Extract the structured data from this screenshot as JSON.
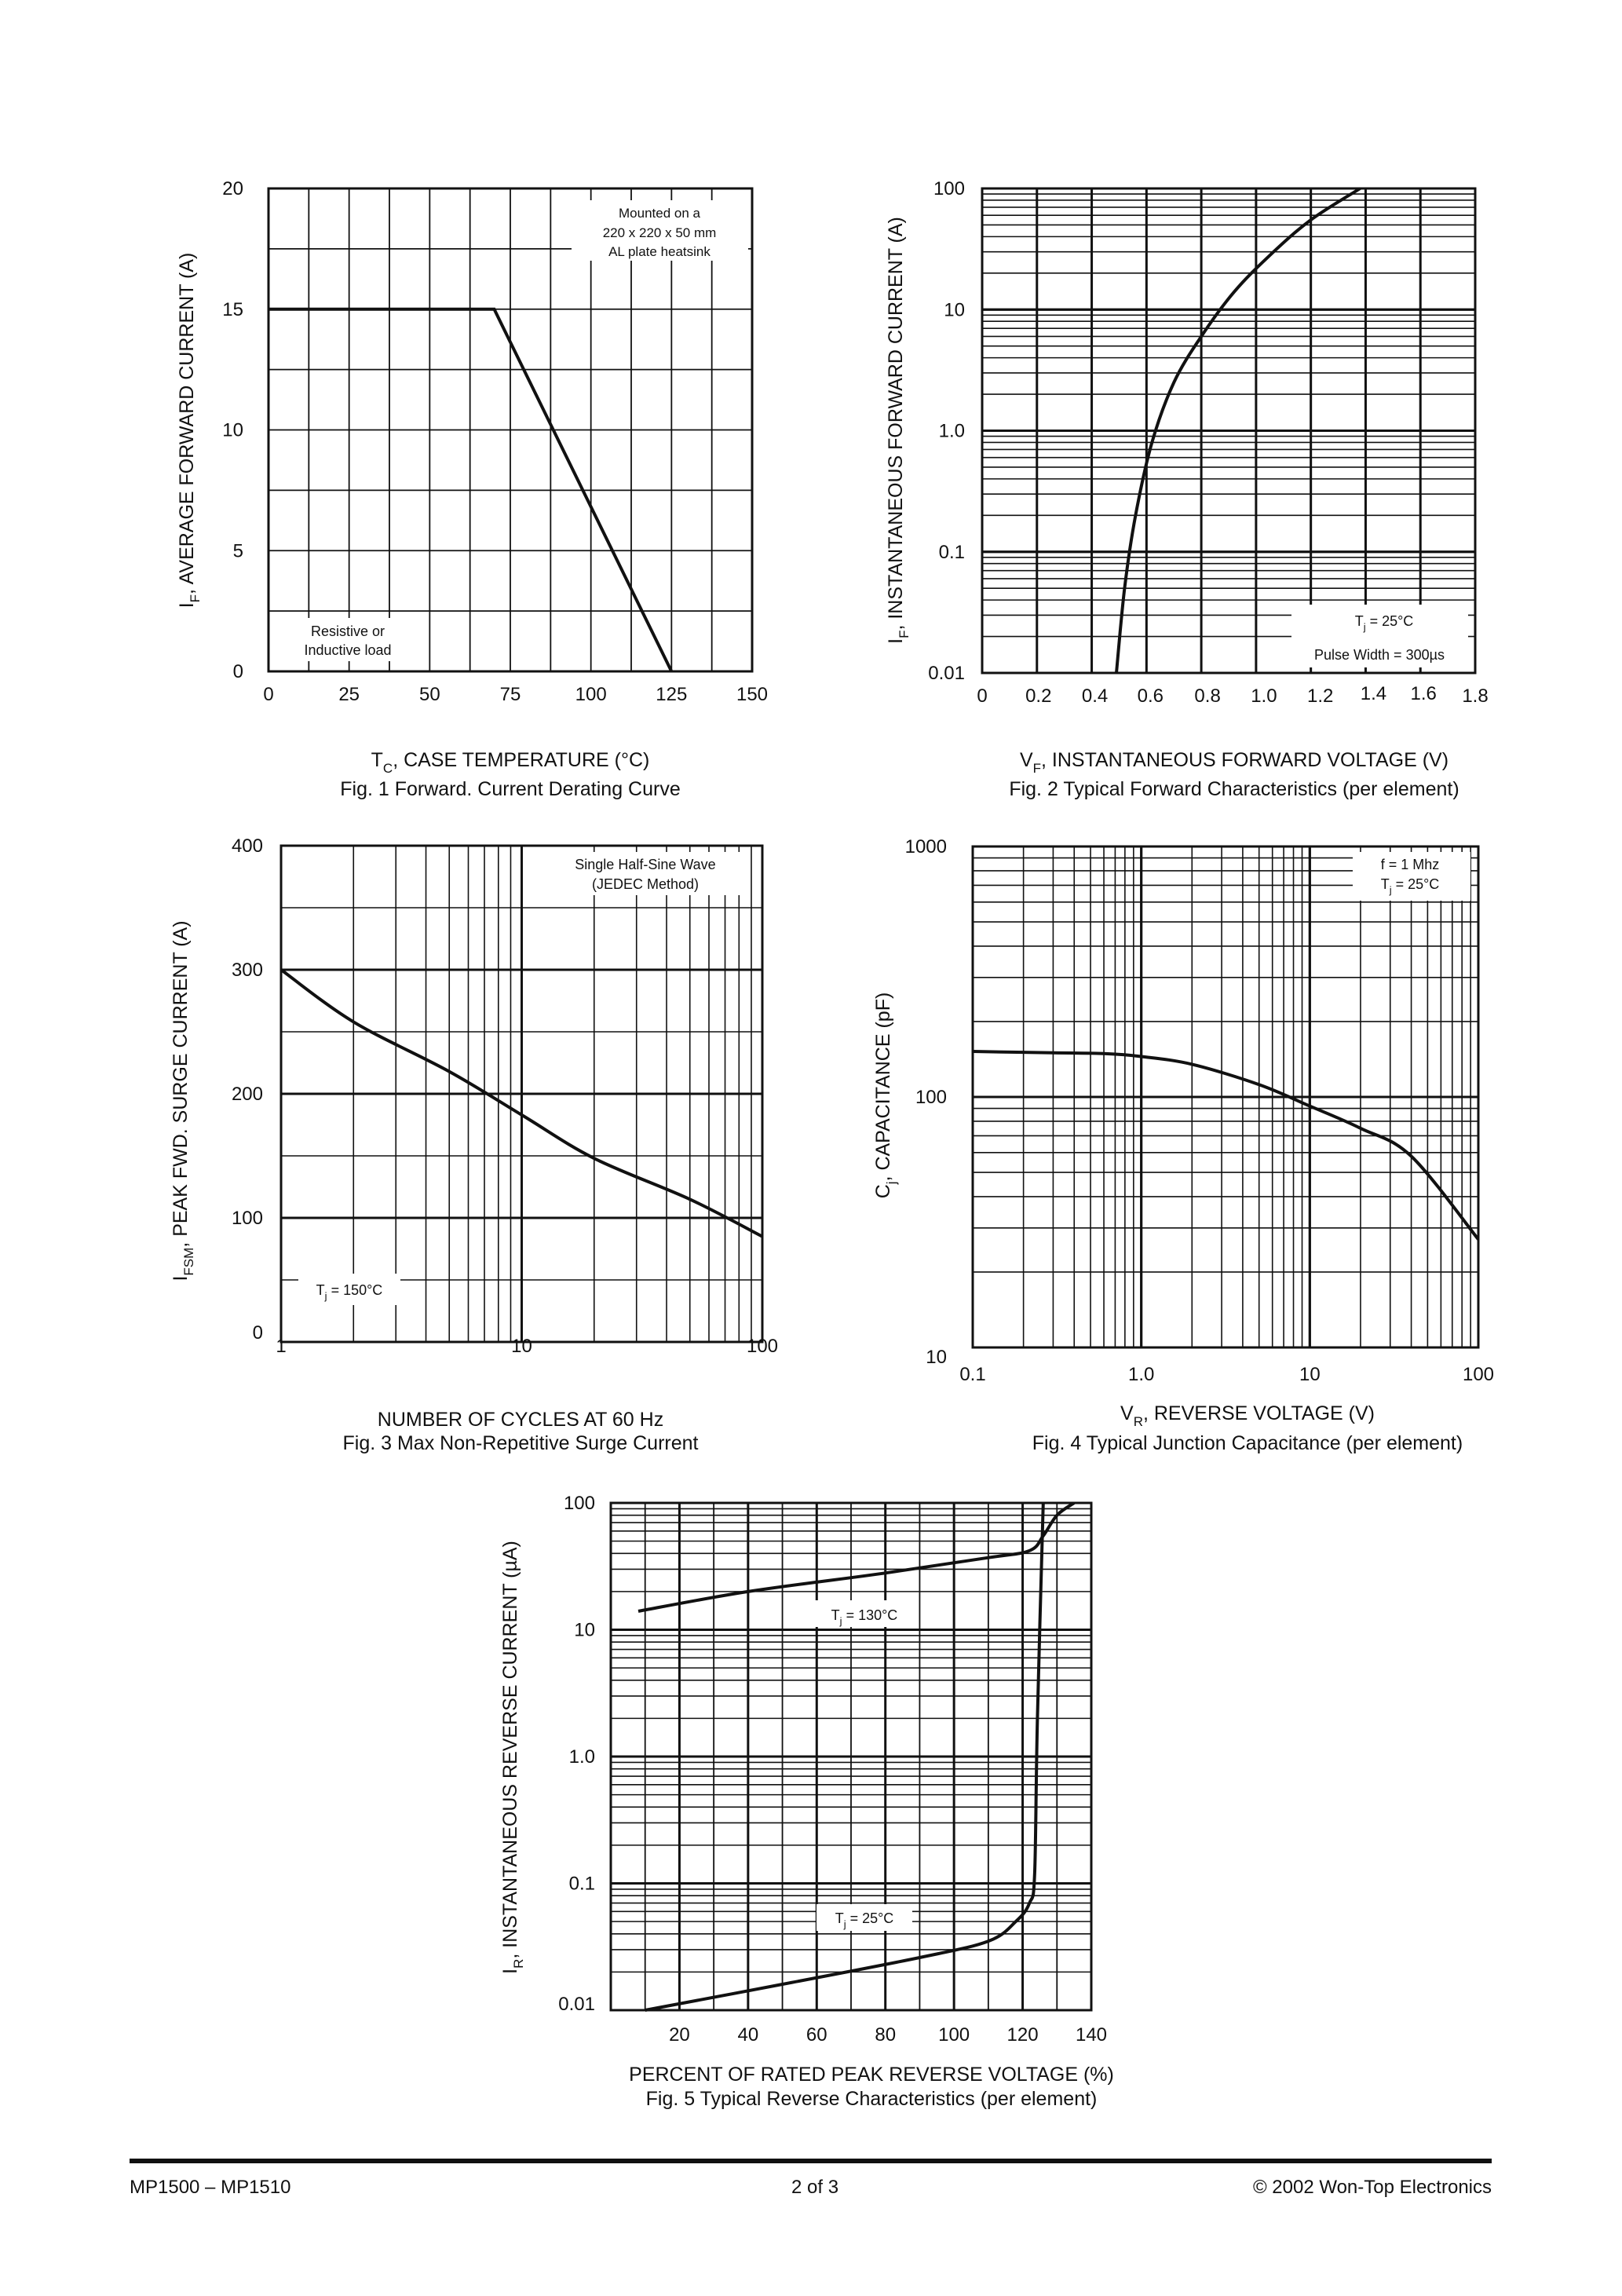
{
  "charts": {
    "fig1": {
      "ylabel_main": "I",
      "ylabel_sub": "F",
      "ylabel_rest": ", AVERAGE FORWARD CURRENT (A)",
      "xlabel_main": "T",
      "xlabel_sub": "C",
      "xlabel_rest": ", CASE TEMPERATURE (°C)",
      "caption": "Fig. 1  Forward. Current Derating Curve",
      "note_top": [
        "Mounted on a",
        "220 x 220 x 50 mm",
        "AL plate heatsink"
      ],
      "note_bottom": [
        "Resistive or",
        "Inductive load"
      ]
    },
    "fig2": {
      "ylabel_main": "I",
      "ylabel_sub": "F",
      "ylabel_rest": ", INSTANTANEOUS FORWARD CURRENT (A)",
      "xlabel_main": "V",
      "xlabel_sub": "F",
      "xlabel_rest": ", INSTANTANEOUS FORWARD VOLTAGE (V)",
      "caption": "Fig. 2  Typical Forward Characteristics (per element)",
      "note1_main": "T",
      "note1_sub": "j",
      "note1_rest": " = 25°C",
      "note2": "Pulse Width = 300µs"
    },
    "fig3": {
      "ylabel_main": "I",
      "ylabel_sub": "FSM",
      "ylabel_rest": ", PEAK FWD. SURGE CURRENT (A)",
      "xlabel": "NUMBER OF CYCLES AT 60 Hz",
      "caption": "Fig. 3  Max Non-Repetitive Surge Current",
      "note_top": [
        "Single Half-Sine Wave",
        "(JEDEC Method)"
      ],
      "note_main": "T",
      "note_sub": "j",
      "note_rest": " = 150°C"
    },
    "fig4": {
      "ylabel_main": "C",
      "ylabel_sub": "j",
      "ylabel_rest": ", CAPACITANCE (pF)",
      "xlabel_main": "V",
      "xlabel_sub": "R",
      "xlabel_rest": ", REVERSE VOLTAGE (V)",
      "caption": "Fig. 4  Typical Junction Capacitance (per element)",
      "note1": "f = 1 Mhz",
      "note2_main": "T",
      "note2_sub": "j",
      "note2_rest": " = 25°C"
    },
    "fig5": {
      "ylabel_main": "I",
      "ylabel_sub": "R",
      "ylabel_rest": ", INSTANTANEOUS REVERSE CURRENT (µA)",
      "xlabel": "PERCENT OF RATED PEAK  REVERSE VOLTAGE (%)",
      "caption": "Fig. 5  Typical Reverse Characteristics (per element)",
      "note_hot_main": "T",
      "note_hot_sub": "j",
      "note_hot_rest": " = 130°C",
      "note_cold_main": "T",
      "note_cold_sub": "j",
      "note_cold_rest": " = 25°C"
    }
  },
  "chart_data": [
    {
      "id": "fig1",
      "type": "line",
      "title": "Fig. 1  Forward. Current Derating Curve",
      "xlabel": "TC, CASE TEMPERATURE (°C)",
      "ylabel": "IF, AVERAGE FORWARD CURRENT (A)",
      "xlim": [
        0,
        150
      ],
      "ylim": [
        0,
        20
      ],
      "xticks": [
        0,
        25,
        50,
        75,
        100,
        125,
        150
      ],
      "yticks": [
        0,
        5,
        10,
        15,
        20
      ],
      "series": [
        {
          "name": "IF",
          "x": [
            0,
            70,
            125
          ],
          "y": [
            15,
            15,
            0
          ]
        }
      ]
    },
    {
      "id": "fig2",
      "type": "line",
      "title": "Fig. 2  Typical Forward Characteristics (per element)",
      "xlabel": "VF, INSTANTANEOUS FORWARD VOLTAGE (V)",
      "ylabel": "IF, INSTANTANEOUS FORWARD CURRENT (A)",
      "xscale": "linear",
      "yscale": "log",
      "xlim": [
        0,
        1.8
      ],
      "ylim": [
        0.01,
        100
      ],
      "xticks": [
        "0",
        "0.2",
        "0.4",
        "0.6",
        "0.8",
        "1.0",
        "1.2",
        "1.4",
        "1.6",
        "1.8"
      ],
      "yticks": [
        "0.01",
        "0.1",
        "1.0",
        "10",
        "100"
      ],
      "series": [
        {
          "name": "IF",
          "x": [
            0.49,
            0.52,
            0.56,
            0.62,
            0.7,
            0.8,
            0.92,
            1.05,
            1.2,
            1.38
          ],
          "y": [
            0.01,
            0.05,
            0.2,
            0.8,
            2.5,
            6,
            14,
            28,
            55,
            100
          ]
        }
      ]
    },
    {
      "id": "fig3",
      "type": "line",
      "title": "Fig. 3  Max Non-Repetitive Surge Current",
      "xlabel": "NUMBER OF CYCLES AT 60 Hz",
      "ylabel": "IFSM, PEAK FWD. SURGE CURRENT (A)",
      "xscale": "log",
      "xlim": [
        1,
        100
      ],
      "ylim": [
        0,
        400
      ],
      "xticks": [
        "1",
        "10",
        "100"
      ],
      "yticks": [
        "0",
        "100",
        "200",
        "300",
        "400"
      ],
      "series": [
        {
          "name": "IFSM",
          "x": [
            1,
            2,
            5,
            10,
            20,
            50,
            100
          ],
          "y": [
            300,
            258,
            218,
            183,
            148,
            115,
            85
          ]
        }
      ]
    },
    {
      "id": "fig4",
      "type": "line",
      "title": "Fig. 4  Typical Junction Capacitance (per element)",
      "xlabel": "VR, REVERSE VOLTAGE (V)",
      "ylabel": "Cj, CAPACITANCE (pF)",
      "xscale": "log",
      "yscale": "log",
      "xlim": [
        0.1,
        100
      ],
      "ylim": [
        10,
        1000
      ],
      "xticks": [
        "0.1",
        "1.0",
        "10",
        "100"
      ],
      "yticks": [
        "10",
        "100",
        "1000"
      ],
      "series": [
        {
          "name": "Cj",
          "x": [
            0.1,
            0.3,
            0.6,
            1,
            2,
            5,
            10,
            20,
            40,
            100
          ],
          "y": [
            152,
            150,
            149,
            145,
            135,
            112,
            92,
            75,
            58,
            27
          ]
        }
      ]
    },
    {
      "id": "fig5",
      "type": "line",
      "title": "Fig. 5  Typical Reverse Characteristics (per element)",
      "xlabel": "PERCENT OF RATED PEAK  REVERSE VOLTAGE (%)",
      "ylabel": "IR, INSTANTANEOUS REVERSE CURRENT (µA)",
      "yscale": "log",
      "xlim": [
        0,
        140
      ],
      "ylim": [
        0.01,
        100
      ],
      "xticks": [
        "20",
        "40",
        "60",
        "80",
        "100",
        "120",
        "140"
      ],
      "yticks": [
        "0.01",
        "0.1",
        "1.0",
        "10",
        "100"
      ],
      "series": [
        {
          "name": "Tj = 130°C",
          "x": [
            8,
            40,
            80,
            110,
            122,
            126,
            130,
            135
          ],
          "y": [
            14,
            20,
            28,
            37,
            42,
            55,
            80,
            100
          ]
        },
        {
          "name": "Tj = 25°C",
          "x": [
            10,
            50,
            90,
            110,
            118,
            122,
            123.5,
            124.3,
            126
          ],
          "y": [
            0.01,
            0.016,
            0.026,
            0.035,
            0.05,
            0.07,
            0.12,
            2,
            100
          ]
        }
      ]
    }
  ],
  "footer": {
    "left": "MP1500 – MP1510",
    "center": "2  of  3",
    "right": "© 2002 Won-Top Electronics"
  }
}
